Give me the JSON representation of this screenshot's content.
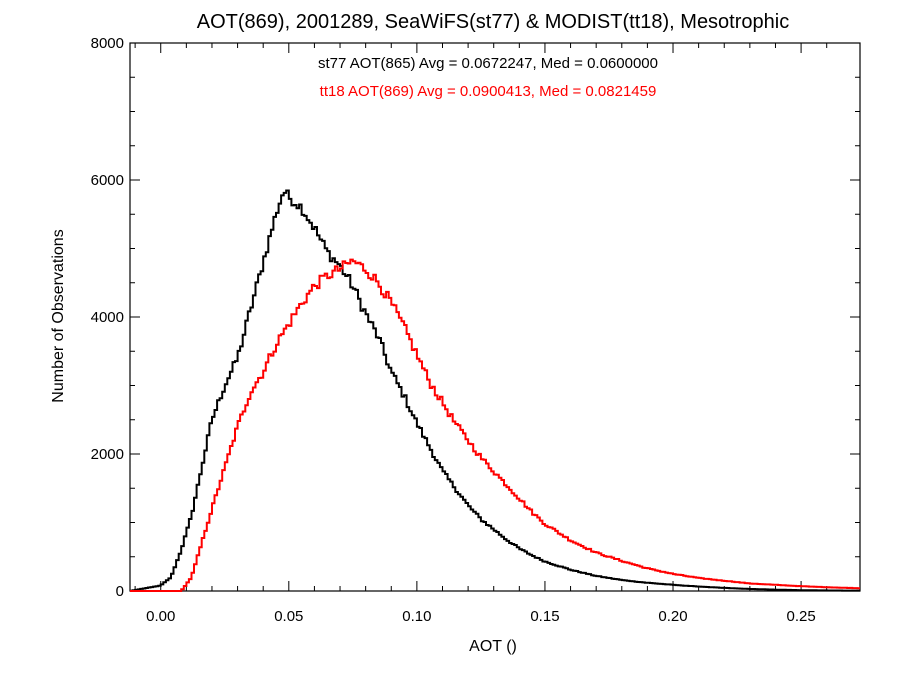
{
  "chart_data": {
    "type": "line",
    "title": "AOT(869), 2001289, SeaWiFS(st77) & MODIST(tt18), Mesotrophic",
    "xlabel": "AOT ()",
    "ylabel": "Number of Observations",
    "xlim": [
      -0.012,
      0.273
    ],
    "ylim": [
      0,
      8000
    ],
    "x_ticks": [
      "0.00",
      "0.05",
      "0.10",
      "0.15",
      "0.20",
      "0.25"
    ],
    "y_ticks": [
      "0",
      "2000",
      "4000",
      "6000",
      "8000"
    ],
    "grid": false,
    "step_plot": true,
    "annotations": [
      {
        "text": "st77 AOT(865) Avg = 0.0672247, Med = 0.0600000",
        "color": "#000000"
      },
      {
        "text": "tt18 AOT(869) Avg = 0.0900413, Med = 0.0821459",
        "color": "#ff0000"
      }
    ],
    "series": [
      {
        "color": "#000000",
        "points": [
          [
            -0.012,
            0
          ],
          [
            0.0,
            80
          ],
          [
            0.004,
            200
          ],
          [
            0.008,
            600
          ],
          [
            0.012,
            1100
          ],
          [
            0.016,
            1800
          ],
          [
            0.02,
            2500
          ],
          [
            0.025,
            3000
          ],
          [
            0.03,
            3400
          ],
          [
            0.035,
            4100
          ],
          [
            0.04,
            4800
          ],
          [
            0.045,
            5500
          ],
          [
            0.048,
            5850
          ],
          [
            0.05,
            5750
          ],
          [
            0.055,
            5600
          ],
          [
            0.06,
            5300
          ],
          [
            0.065,
            4950
          ],
          [
            0.07,
            4750
          ],
          [
            0.075,
            4450
          ],
          [
            0.08,
            4050
          ],
          [
            0.085,
            3700
          ],
          [
            0.09,
            3200
          ],
          [
            0.095,
            2850
          ],
          [
            0.1,
            2450
          ],
          [
            0.105,
            2100
          ],
          [
            0.11,
            1750
          ],
          [
            0.115,
            1500
          ],
          [
            0.12,
            1250
          ],
          [
            0.125,
            1050
          ],
          [
            0.13,
            900
          ],
          [
            0.135,
            750
          ],
          [
            0.14,
            620
          ],
          [
            0.145,
            520
          ],
          [
            0.15,
            430
          ],
          [
            0.155,
            370
          ],
          [
            0.16,
            310
          ],
          [
            0.17,
            220
          ],
          [
            0.18,
            160
          ],
          [
            0.19,
            120
          ],
          [
            0.2,
            90
          ],
          [
            0.21,
            65
          ],
          [
            0.22,
            45
          ],
          [
            0.23,
            30
          ],
          [
            0.24,
            20
          ],
          [
            0.25,
            12
          ],
          [
            0.26,
            8
          ],
          [
            0.273,
            5
          ]
        ]
      },
      {
        "color": "#ff0000",
        "points": [
          [
            -0.012,
            0
          ],
          [
            0.008,
            0
          ],
          [
            0.012,
            200
          ],
          [
            0.016,
            700
          ],
          [
            0.02,
            1200
          ],
          [
            0.025,
            1800
          ],
          [
            0.03,
            2400
          ],
          [
            0.035,
            2900
          ],
          [
            0.04,
            3200
          ],
          [
            0.045,
            3600
          ],
          [
            0.05,
            3900
          ],
          [
            0.055,
            4200
          ],
          [
            0.06,
            4450
          ],
          [
            0.065,
            4600
          ],
          [
            0.07,
            4700
          ],
          [
            0.075,
            4820
          ],
          [
            0.08,
            4700
          ],
          [
            0.085,
            4500
          ],
          [
            0.09,
            4200
          ],
          [
            0.095,
            3850
          ],
          [
            0.1,
            3450
          ],
          [
            0.105,
            3050
          ],
          [
            0.11,
            2750
          ],
          [
            0.115,
            2450
          ],
          [
            0.12,
            2200
          ],
          [
            0.125,
            1950
          ],
          [
            0.13,
            1750
          ],
          [
            0.135,
            1550
          ],
          [
            0.14,
            1350
          ],
          [
            0.145,
            1150
          ],
          [
            0.15,
            980
          ],
          [
            0.155,
            860
          ],
          [
            0.16,
            740
          ],
          [
            0.17,
            560
          ],
          [
            0.18,
            440
          ],
          [
            0.19,
            330
          ],
          [
            0.2,
            250
          ],
          [
            0.21,
            190
          ],
          [
            0.22,
            150
          ],
          [
            0.23,
            110
          ],
          [
            0.24,
            90
          ],
          [
            0.25,
            70
          ],
          [
            0.26,
            55
          ],
          [
            0.273,
            40
          ]
        ]
      }
    ]
  }
}
